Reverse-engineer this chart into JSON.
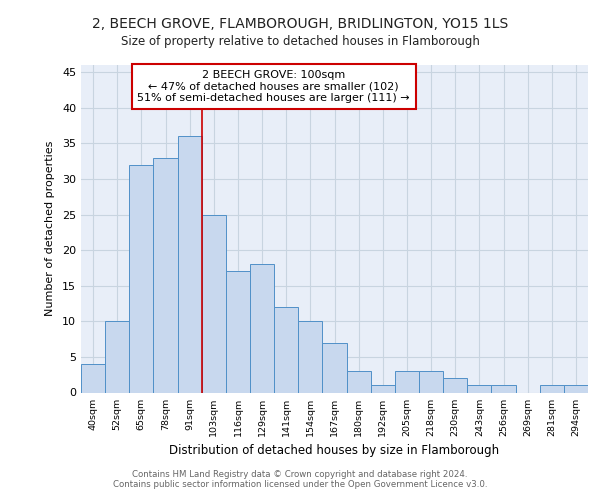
{
  "title1": "2, BEECH GROVE, FLAMBOROUGH, BRIDLINGTON, YO15 1LS",
  "title2": "Size of property relative to detached houses in Flamborough",
  "xlabel": "Distribution of detached houses by size in Flamborough",
  "ylabel": "Number of detached properties",
  "footer1": "Contains HM Land Registry data © Crown copyright and database right 2024.",
  "footer2": "Contains public sector information licensed under the Open Government Licence v3.0.",
  "annotation_line1": "2 BEECH GROVE: 100sqm",
  "annotation_line2": "← 47% of detached houses are smaller (102)",
  "annotation_line3": "51% of semi-detached houses are larger (111) →",
  "bar_labels": [
    "40sqm",
    "52sqm",
    "65sqm",
    "78sqm",
    "91sqm",
    "103sqm",
    "116sqm",
    "129sqm",
    "141sqm",
    "154sqm",
    "167sqm",
    "180sqm",
    "192sqm",
    "205sqm",
    "218sqm",
    "230sqm",
    "243sqm",
    "256sqm",
    "269sqm",
    "281sqm",
    "294sqm"
  ],
  "bar_values": [
    4,
    10,
    32,
    33,
    36,
    25,
    17,
    18,
    12,
    10,
    7,
    3,
    1,
    3,
    3,
    2,
    1,
    1,
    0,
    1,
    1
  ],
  "bar_color": "#c8d8ee",
  "bar_edge_color": "#5090c8",
  "vline_x_index": 4.5,
  "vline_color": "#cc0000",
  "ylim": [
    0,
    46
  ],
  "yticks": [
    0,
    5,
    10,
    15,
    20,
    25,
    30,
    35,
    40,
    45
  ],
  "annotation_box_color": "#cc0000",
  "annotation_box_fill": "white",
  "grid_color": "#c8d4e0",
  "bg_color": "#e8eef8",
  "fig_bg_color": "#ffffff"
}
